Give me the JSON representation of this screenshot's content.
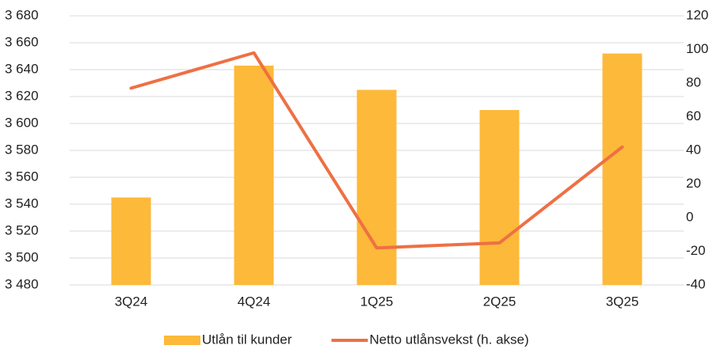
{
  "chart_data": {
    "type": "bar-line",
    "categories": [
      "3Q24",
      "4Q24",
      "1Q25",
      "2Q25",
      "3Q25"
    ],
    "series": [
      {
        "name": "Utlån til kunder",
        "color": "#fdb93a",
        "type": "bar",
        "values": [
          3545,
          3643,
          3625,
          3610,
          3652
        ]
      },
      {
        "name": "Netto utlånsvekst (h. akse)",
        "color": "#ee7044",
        "type": "line",
        "axis": "y2",
        "values": [
          77,
          98,
          -18,
          -15,
          42
        ]
      }
    ],
    "ylim": [
      3480,
      3680
    ],
    "yticks": [
      {
        "value": 3480,
        "label": "3 480"
      },
      {
        "value": 3500,
        "label": "3 500"
      },
      {
        "value": 3520,
        "label": "3 520"
      },
      {
        "value": 3540,
        "label": "3 540"
      },
      {
        "value": 3560,
        "label": "3 560"
      },
      {
        "value": 3580,
        "label": "3 580"
      },
      {
        "value": 3600,
        "label": "3 600"
      },
      {
        "value": 3620,
        "label": "3 620"
      },
      {
        "value": 3640,
        "label": "3 640"
      },
      {
        "value": 3660,
        "label": "3 660"
      },
      {
        "value": 3680,
        "label": "3 680"
      }
    ],
    "y2lim": [
      -40,
      120
    ],
    "y2ticks": [
      -40,
      -20,
      0,
      20,
      40,
      60,
      80,
      100,
      120
    ],
    "grid": true,
    "legend": "bottom"
  }
}
